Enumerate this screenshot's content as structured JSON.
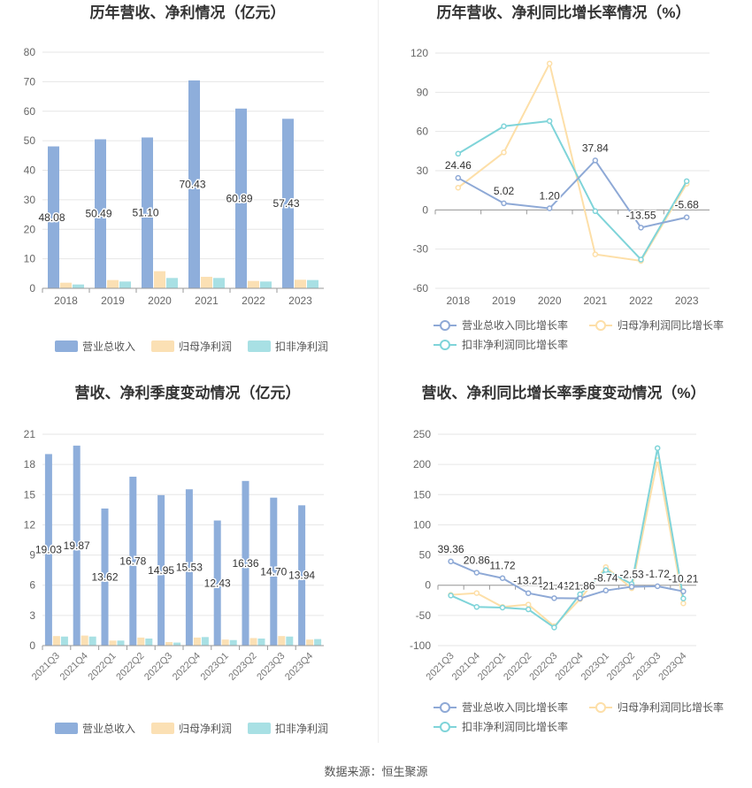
{
  "source_label": "数据来源：恒生聚源",
  "colors": {
    "revenue": "#8eaedb",
    "parent_profit": "#fbe0b4",
    "deducted_profit": "#a8e0e4",
    "rev_growth_line": "#8ea9d6",
    "parent_growth_line": "#fddfa8",
    "deducted_growth_line": "#7fd4d9"
  },
  "chart_data": [
    {
      "type": "bar",
      "title": "历年营收、净利情况（亿元）",
      "categories": [
        "2018",
        "2019",
        "2020",
        "2021",
        "2022",
        "2023"
      ],
      "ylim": [
        0,
        80
      ],
      "yticks": [
        0,
        10,
        20,
        30,
        40,
        50,
        60,
        70,
        80
      ],
      "series": [
        {
          "name": "营业总收入",
          "values": [
            48.08,
            50.49,
            51.1,
            70.43,
            60.89,
            57.43
          ],
          "labels": [
            "48.08",
            "50.49",
            "51.10",
            "70.43",
            "60.89",
            "57.43"
          ]
        },
        {
          "name": "归母净利润",
          "values": [
            1.9,
            2.8,
            5.8,
            3.9,
            2.5,
            2.9
          ]
        },
        {
          "name": "扣非净利润",
          "values": [
            1.3,
            2.3,
            3.5,
            3.5,
            2.3,
            2.8
          ]
        }
      ],
      "legend_position": "bottom",
      "grid": true
    },
    {
      "type": "line",
      "title": "历年营收、净利同比增长率情况（%）",
      "categories": [
        "2018",
        "2019",
        "2020",
        "2021",
        "2022",
        "2023"
      ],
      "ylim": [
        -60,
        120
      ],
      "yticks": [
        -60,
        -30,
        0,
        30,
        60,
        90,
        120
      ],
      "series": [
        {
          "name": "营业总收入同比增长率",
          "values": [
            24.46,
            5.02,
            1.2,
            37.84,
            -13.55,
            -5.68
          ],
          "labels": [
            "24.46",
            "5.02",
            "1.20",
            "37.84",
            "-13.55",
            "-5.68"
          ]
        },
        {
          "name": "归母净利润同比增长率",
          "values": [
            17,
            44,
            112,
            -34,
            -39,
            20
          ]
        },
        {
          "name": "扣非净利润同比增长率",
          "values": [
            43,
            64,
            68,
            -1,
            -38,
            22
          ]
        }
      ],
      "legend_position": "bottom",
      "grid": true
    },
    {
      "type": "bar",
      "title": "营收、净利季度变动情况（亿元）",
      "categories": [
        "2021Q3",
        "2021Q4",
        "2022Q1",
        "2022Q2",
        "2022Q3",
        "2022Q4",
        "2023Q1",
        "2023Q2",
        "2023Q3",
        "2023Q4"
      ],
      "ylim": [
        0,
        21
      ],
      "yticks": [
        0,
        3,
        6,
        9,
        12,
        15,
        18,
        21
      ],
      "series": [
        {
          "name": "营业总收入",
          "values": [
            19.03,
            19.87,
            13.62,
            16.78,
            14.95,
            15.53,
            12.43,
            16.36,
            14.7,
            13.94
          ],
          "labels": [
            "19.03",
            "19.87",
            "13.62",
            "16.78",
            "14.95",
            "15.53",
            "12.43",
            "16.36",
            "14.70",
            "13.94"
          ]
        },
        {
          "name": "归母净利润",
          "values": [
            0.95,
            1.0,
            0.5,
            0.8,
            0.35,
            0.8,
            0.6,
            0.75,
            0.95,
            0.6
          ]
        },
        {
          "name": "扣非净利润",
          "values": [
            0.9,
            0.9,
            0.5,
            0.7,
            0.3,
            0.85,
            0.55,
            0.7,
            0.9,
            0.65
          ]
        }
      ],
      "legend_position": "bottom",
      "grid": true
    },
    {
      "type": "line",
      "title": "营收、净利同比增长率季度变动情况（%）",
      "categories": [
        "2021Q3",
        "2021Q4",
        "2022Q1",
        "2022Q2",
        "2022Q3",
        "2022Q4",
        "2023Q1",
        "2023Q2",
        "2023Q3",
        "2023Q4"
      ],
      "ylim": [
        -100,
        250
      ],
      "yticks": [
        -100,
        -50,
        0,
        50,
        100,
        150,
        200,
        250
      ],
      "series": [
        {
          "name": "营业总收入同比增长率",
          "values": [
            39.36,
            20.86,
            11.72,
            -13.21,
            -21.41,
            -21.86,
            -8.74,
            -2.53,
            -1.72,
            -10.21
          ],
          "labels": [
            "39.36",
            "20.86",
            "11.72",
            "-13.21",
            "-21.41",
            "-21.86",
            "-8.74",
            "-2.53",
            "-1.72",
            "-10.21"
          ]
        },
        {
          "name": "归母净利润同比增长率",
          "values": [
            -16,
            -13,
            -36,
            -32,
            -68,
            -23,
            30,
            -5,
            207,
            -30
          ]
        },
        {
          "name": "扣非净利润同比增长率",
          "values": [
            -17,
            -36,
            -37,
            -40,
            -70,
            -15,
            25,
            2,
            227,
            -22
          ]
        }
      ],
      "legend_position": "bottom",
      "grid": true
    }
  ]
}
